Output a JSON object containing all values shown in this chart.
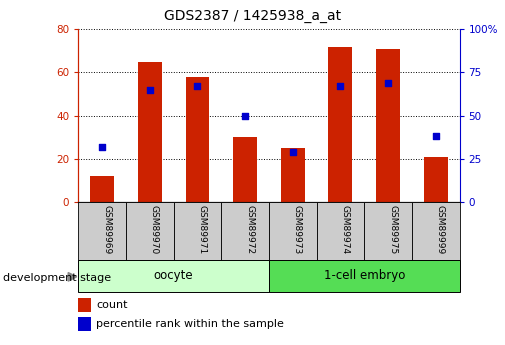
{
  "title": "GDS2387 / 1425938_a_at",
  "samples": [
    "GSM89969",
    "GSM89970",
    "GSM89971",
    "GSM89972",
    "GSM89973",
    "GSM89974",
    "GSM89975",
    "GSM89999"
  ],
  "counts": [
    12,
    65,
    58,
    30,
    25,
    72,
    71,
    21
  ],
  "percentile_ranks": [
    32,
    65,
    67,
    50,
    29,
    67,
    69,
    38
  ],
  "groups": [
    {
      "label": "oocyte",
      "start": 0,
      "end": 3,
      "color": "#ccffcc"
    },
    {
      "label": "1-cell embryo",
      "start": 4,
      "end": 7,
      "color": "#55dd55"
    }
  ],
  "group_label": "development stage",
  "ylim_left": [
    0,
    80
  ],
  "ylim_right": [
    0,
    100
  ],
  "yticks_left": [
    0,
    20,
    40,
    60,
    80
  ],
  "yticks_right": [
    0,
    25,
    50,
    75,
    100
  ],
  "bar_color": "#cc2200",
  "dot_color": "#0000cc",
  "bar_width": 0.5,
  "legend_count_label": "count",
  "legend_pct_label": "percentile rank within the sample",
  "title_fontsize": 10,
  "tick_fontsize": 7.5,
  "bg_color": "#ffffff",
  "axis_color_left": "#cc2200",
  "axis_color_right": "#0000cc",
  "xtick_bg": "#cccccc",
  "grid_color": "#000000"
}
